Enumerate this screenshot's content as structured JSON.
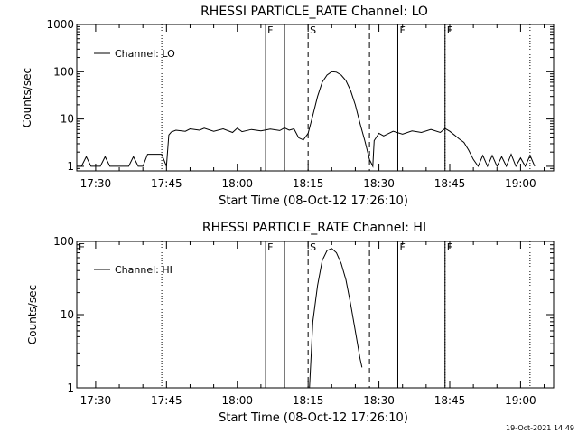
{
  "footer": "19-Oct-2021 14:49",
  "chart_data": [
    {
      "type": "line",
      "title": "RHESSI PARTICLE_RATE Channel: LO",
      "xlabel": "Start Time (08-Oct-12 17:26:10)",
      "ylabel": "Counts/sec",
      "yscale": "log",
      "ylim": [
        0.8,
        1000
      ],
      "xlim": [
        "17:26",
        "19:07"
      ],
      "x_ticks": [
        "17:30",
        "17:45",
        "18:00",
        "18:15",
        "18:30",
        "18:45",
        "19:00"
      ],
      "y_ticks": [
        "1",
        "10",
        "100",
        "1000"
      ],
      "legend": "top-left",
      "series": [
        {
          "name": "Channel: LO",
          "points": [
            [
              "17:26",
              1
            ],
            [
              "17:27",
              1
            ],
            [
              "17:28",
              1.6
            ],
            [
              "17:29",
              1
            ],
            [
              "17:31",
              1
            ],
            [
              "17:32",
              1.6
            ],
            [
              "17:33",
              1
            ],
            [
              "17:37",
              1
            ],
            [
              "17:38",
              1.6
            ],
            [
              "17:39",
              1
            ],
            [
              "17:40",
              1
            ],
            [
              "17:41",
              1.8
            ],
            [
              "17:44",
              1.8
            ],
            [
              "17:45",
              1
            ],
            [
              "17:45.5",
              4.6
            ],
            [
              "17:46",
              5.3
            ],
            [
              "17:47",
              5.8
            ],
            [
              "17:49",
              5.5
            ],
            [
              "17:50",
              6.2
            ],
            [
              "17:52",
              5.8
            ],
            [
              "17:53",
              6.4
            ],
            [
              "17:55",
              5.5
            ],
            [
              "17:57",
              6.2
            ],
            [
              "17:59",
              5.2
            ],
            [
              "18:00",
              6.4
            ],
            [
              "18:01",
              5.4
            ],
            [
              "18:03",
              6
            ],
            [
              "18:05",
              5.6
            ],
            [
              "18:07",
              6.1
            ],
            [
              "18:09",
              5.7
            ],
            [
              "18:10",
              6.5
            ],
            [
              "18:11",
              5.8
            ],
            [
              "18:12",
              6.2
            ],
            [
              "18:13",
              4
            ],
            [
              "18:14",
              3.6
            ],
            [
              "18:15",
              5
            ],
            [
              "18:16",
              12
            ],
            [
              "18:17",
              30
            ],
            [
              "18:18",
              60
            ],
            [
              "18:19",
              85
            ],
            [
              "18:20",
              100
            ],
            [
              "18:21",
              98
            ],
            [
              "18:22",
              85
            ],
            [
              "18:23",
              65
            ],
            [
              "18:24",
              40
            ],
            [
              "18:25",
              20
            ],
            [
              "18:26",
              8
            ],
            [
              "18:27",
              3.5
            ],
            [
              "18:28",
              1.4
            ],
            [
              "18:28.7",
              1
            ],
            [
              "18:29",
              3.5
            ],
            [
              "18:30",
              5
            ],
            [
              "18:31",
              4.4
            ],
            [
              "18:33",
              5.5
            ],
            [
              "18:35",
              4.8
            ],
            [
              "18:37",
              5.6
            ],
            [
              "18:39",
              5.2
            ],
            [
              "18:41",
              6
            ],
            [
              "18:43",
              5.2
            ],
            [
              "18:44",
              6.3
            ],
            [
              "18:45",
              5.5
            ],
            [
              "18:46",
              4.6
            ],
            [
              "18:47",
              3.8
            ],
            [
              "18:48",
              3.2
            ],
            [
              "18:49",
              2.2
            ],
            [
              "18:50",
              1.4
            ],
            [
              "18:51",
              1
            ],
            [
              "18:52",
              1.7
            ],
            [
              "18:53",
              1
            ],
            [
              "18:54",
              1.7
            ],
            [
              "18:55",
              1
            ],
            [
              "18:56",
              1.6
            ],
            [
              "18:57",
              1
            ],
            [
              "18:58",
              1.8
            ],
            [
              "18:59",
              1
            ],
            [
              "19:00",
              1.5
            ],
            [
              "19:01",
              1
            ],
            [
              "19:02",
              1.7
            ],
            [
              "19:03",
              1
            ]
          ]
        }
      ],
      "event_markers": [
        {
          "time": "18:06",
          "label": "F",
          "style": "solid"
        },
        {
          "time": "18:10",
          "label": "",
          "style": "solid"
        },
        {
          "time": "18:15",
          "label": "S",
          "style": "dashed"
        },
        {
          "time": "18:28",
          "label": "",
          "style": "dashed"
        },
        {
          "time": "18:34",
          "label": "F",
          "style": "solid"
        },
        {
          "time": "18:44",
          "label": "E",
          "style": "solid"
        },
        {
          "time": "17:44",
          "label": "",
          "style": "dotted"
        },
        {
          "time": "18:44",
          "label": "",
          "style": "dotted"
        },
        {
          "time": "19:02",
          "label": "",
          "style": "dotted"
        }
      ]
    },
    {
      "type": "line",
      "title": "RHESSI PARTICLE_RATE Channel: HI",
      "xlabel": "Start Time (08-Oct-12 17:26:10)",
      "ylabel": "Counts/sec",
      "yscale": "log",
      "ylim": [
        1,
        100
      ],
      "xlim": [
        "17:26",
        "19:07"
      ],
      "x_ticks": [
        "17:30",
        "17:45",
        "18:00",
        "18:15",
        "18:30",
        "18:45",
        "19:00"
      ],
      "y_ticks": [
        "1",
        "10",
        "100"
      ],
      "legend": "top-left",
      "series": [
        {
          "name": "Channel: HI",
          "points": [
            [
              "18:15.3",
              1
            ],
            [
              "18:16",
              8
            ],
            [
              "18:17",
              25
            ],
            [
              "18:18",
              55
            ],
            [
              "18:19",
              75
            ],
            [
              "18:20",
              80
            ],
            [
              "18:21",
              70
            ],
            [
              "18:22",
              50
            ],
            [
              "18:23",
              30
            ],
            [
              "18:24",
              14
            ],
            [
              "18:25",
              6
            ],
            [
              "18:26",
              2.5
            ],
            [
              "18:26.4",
              1.9
            ]
          ]
        }
      ],
      "event_markers": [
        {
          "time": "18:06",
          "label": "F",
          "style": "solid"
        },
        {
          "time": "18:10",
          "label": "",
          "style": "solid"
        },
        {
          "time": "18:15",
          "label": "S",
          "style": "dashed"
        },
        {
          "time": "18:28",
          "label": "",
          "style": "dashed"
        },
        {
          "time": "18:34",
          "label": "F",
          "style": "solid"
        },
        {
          "time": "18:44",
          "label": "E",
          "style": "solid"
        },
        {
          "time": "17:26",
          "label": "E",
          "style": "none"
        },
        {
          "time": "17:44",
          "label": "",
          "style": "dotted"
        },
        {
          "time": "18:44",
          "label": "",
          "style": "dotted"
        },
        {
          "time": "19:02",
          "label": "",
          "style": "dotted"
        }
      ]
    }
  ]
}
